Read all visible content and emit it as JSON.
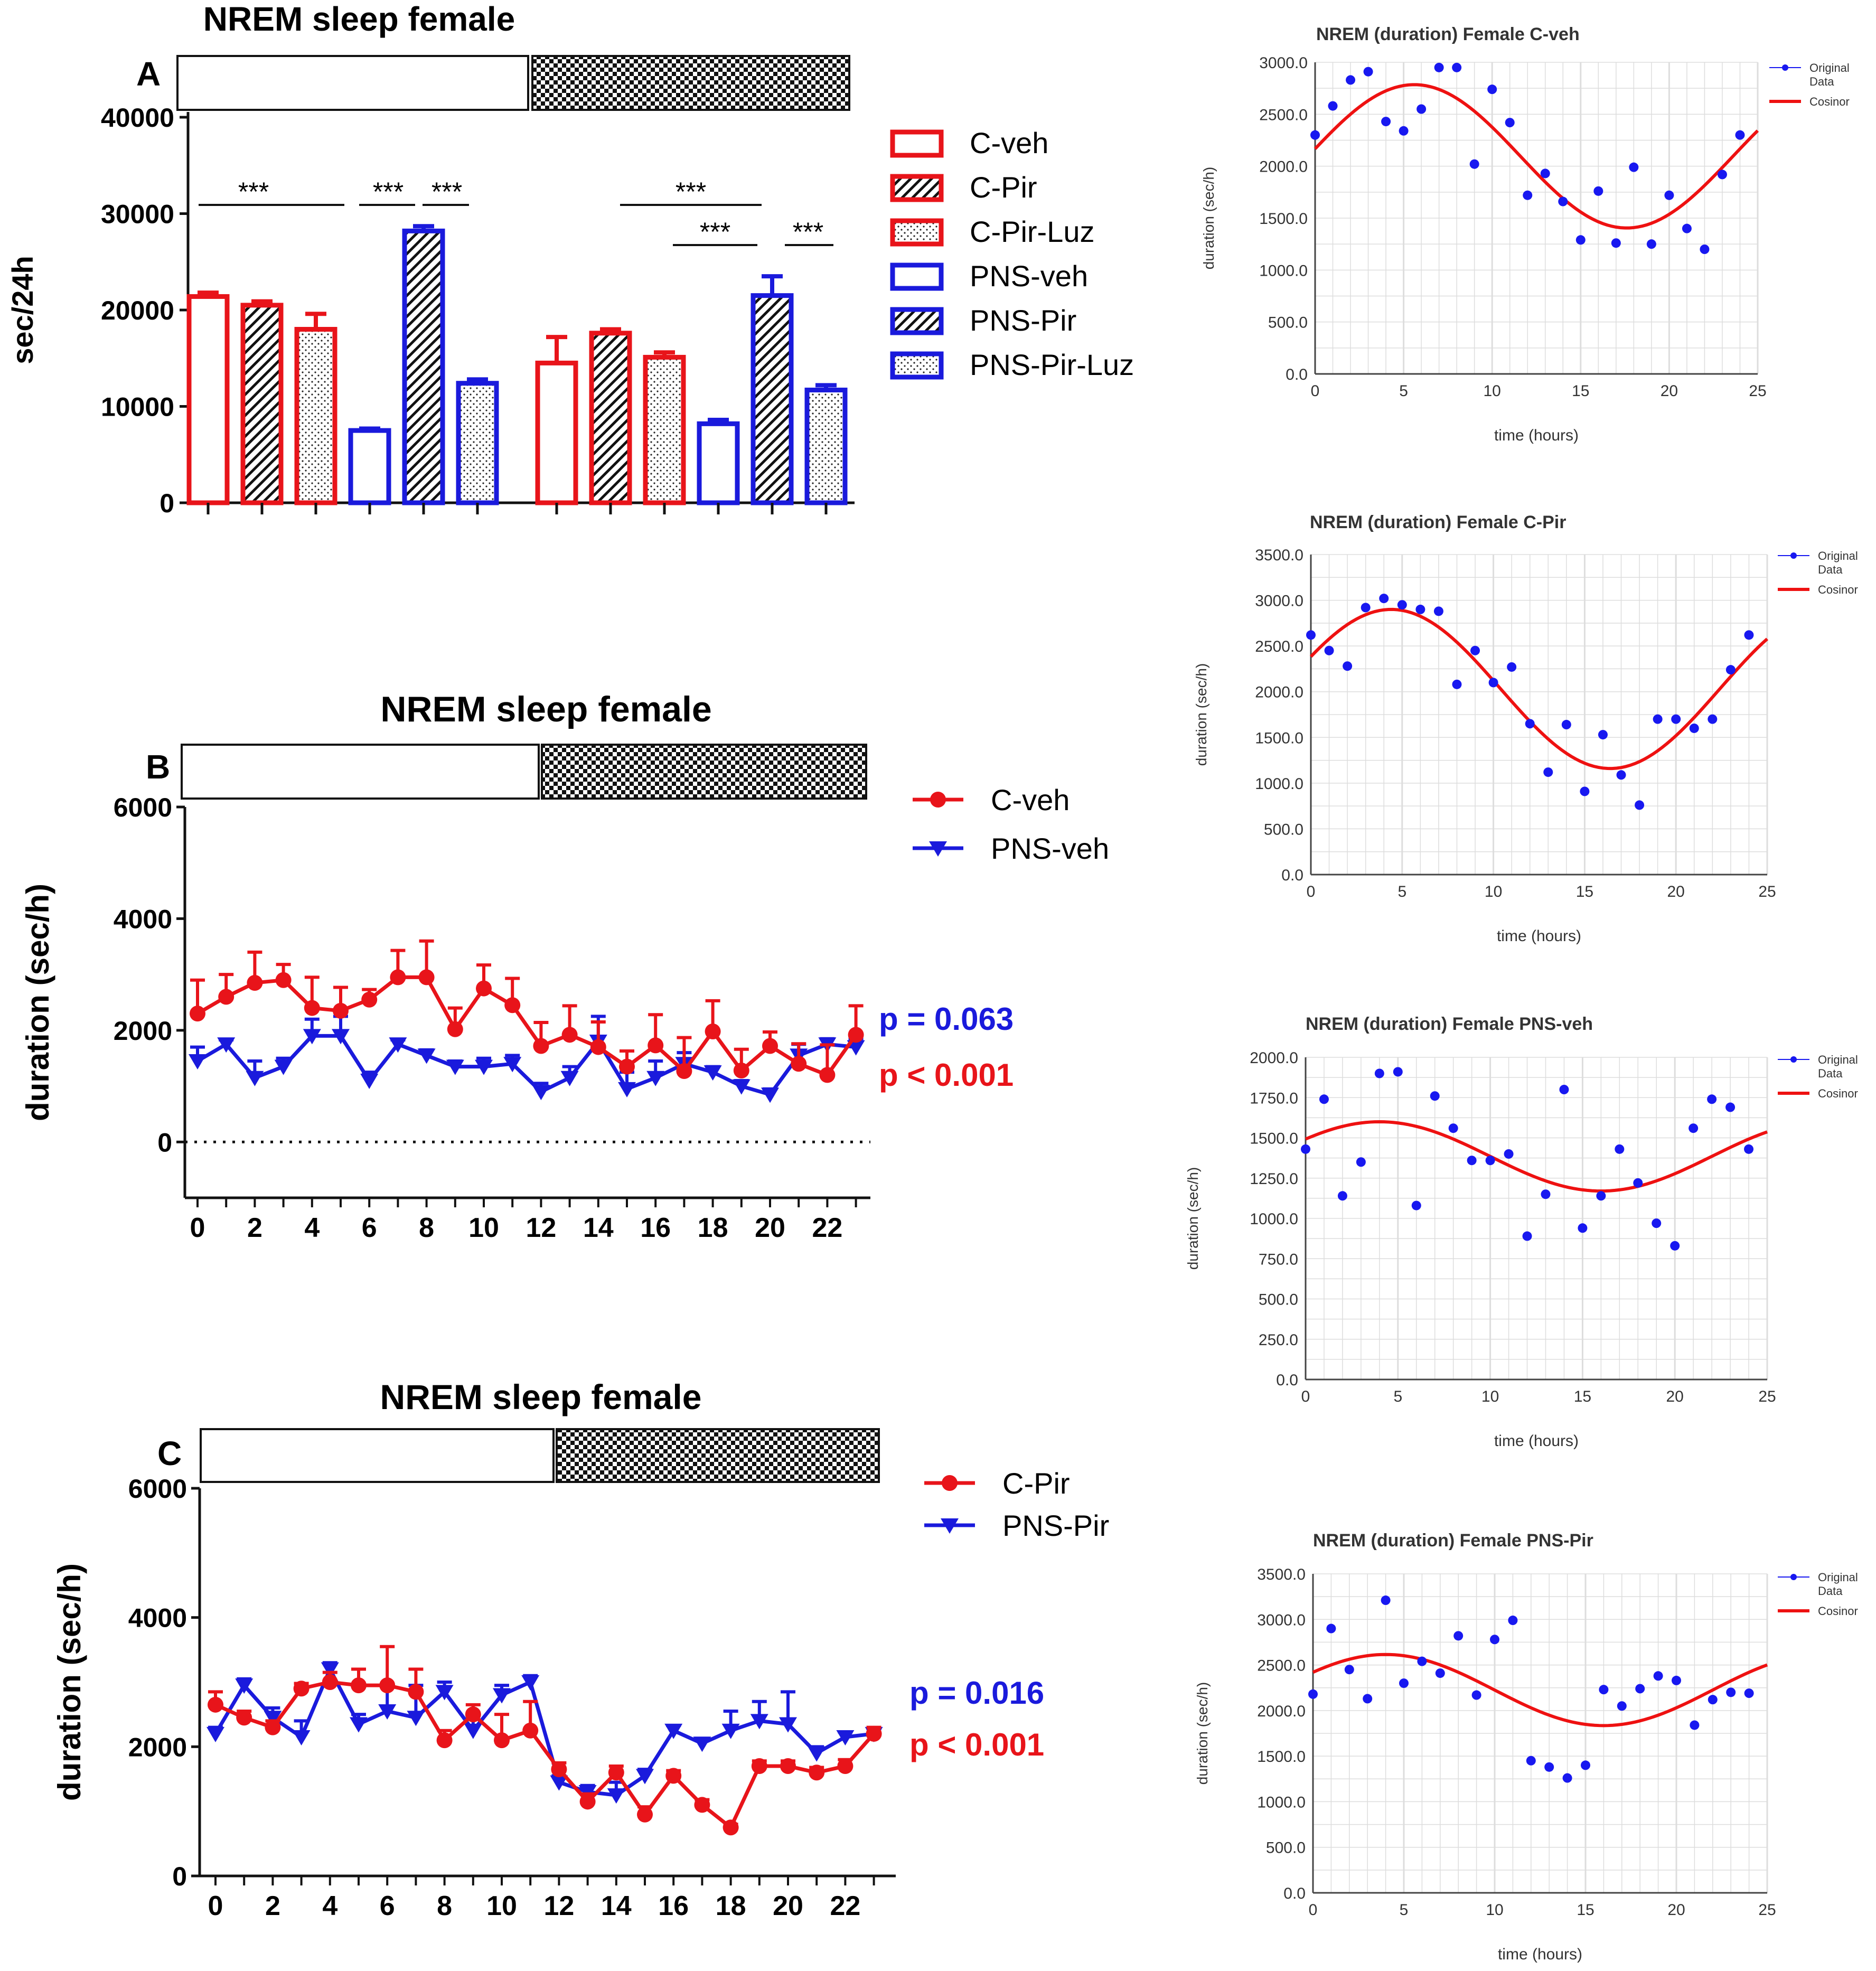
{
  "colors": {
    "red": "#e8141a",
    "blue": "#1a1adc",
    "cos_red": "#ee1111",
    "dot_blue": "#1818f0",
    "grid": "#dddddd"
  },
  "panel_a": {
    "title": "NREM sleep female",
    "letter": "A",
    "legend": [
      "C-veh",
      "C-Pir",
      "C-Pir-Luz",
      "PNS-veh",
      "PNS-Pir",
      "PNS-Pir-Luz"
    ],
    "sig_marker": "***"
  },
  "panel_b": {
    "title": "NREM sleep female",
    "letter": "B",
    "p_blue": "p = 0.063",
    "p_red": "p < 0.001"
  },
  "panel_c": {
    "title": "NREM sleep female",
    "letter": "C",
    "p_blue": "p = 0.016",
    "p_red": "p < 0.001"
  },
  "cosinor_legend": {
    "line1": "Original",
    "line2": "Data",
    "line3": "Cosinor"
  },
  "chart_data": [
    {
      "id": "A",
      "type": "bar",
      "title": "NREM sleep female",
      "ylabel": "sec/24h",
      "ylim": [
        0,
        40000
      ],
      "yticks": [
        0,
        10000,
        20000,
        30000,
        40000
      ],
      "groups": [
        "light phase",
        "dark phase"
      ],
      "series": [
        {
          "name": "C-veh",
          "values": [
            21400,
            14500
          ],
          "errors": [
            400,
            2700
          ],
          "color": "red",
          "pattern": "open"
        },
        {
          "name": "C-Pir",
          "values": [
            20500,
            17600
          ],
          "errors": [
            400,
            400
          ],
          "color": "red",
          "pattern": "hatch"
        },
        {
          "name": "C-Pir-Luz",
          "values": [
            18000,
            15100
          ],
          "errors": [
            1600,
            500
          ],
          "color": "red",
          "pattern": "dots"
        },
        {
          "name": "PNS-veh",
          "values": [
            7500,
            8200
          ],
          "errors": [
            200,
            400
          ],
          "color": "blue",
          "pattern": "open"
        },
        {
          "name": "PNS-Pir",
          "values": [
            28200,
            21500
          ],
          "errors": [
            500,
            2000
          ],
          "color": "blue",
          "pattern": "hatch"
        },
        {
          "name": "PNS-Pir-Luz",
          "values": [
            12400,
            11700
          ],
          "errors": [
            400,
            500
          ],
          "color": "blue",
          "pattern": "dots"
        }
      ]
    },
    {
      "id": "B",
      "type": "line",
      "title": "NREM sleep female",
      "ylabel": "duration (sec/h)",
      "ylim": [
        -1000,
        6000
      ],
      "yticks": [
        0,
        2000,
        4000,
        6000
      ],
      "x": [
        0,
        1,
        2,
        3,
        4,
        5,
        6,
        7,
        8,
        9,
        10,
        11,
        12,
        13,
        14,
        15,
        16,
        17,
        18,
        19,
        20,
        21,
        22,
        23
      ],
      "xticks": [
        0,
        2,
        4,
        6,
        8,
        10,
        12,
        14,
        16,
        18,
        20,
        22
      ],
      "series": [
        {
          "name": "C-veh",
          "color": "red",
          "marker": "circle",
          "values": [
            2300,
            2600,
            2850,
            2900,
            2400,
            2350,
            2550,
            2950,
            2950,
            2020,
            2750,
            2450,
            1720,
            1920,
            1700,
            1350,
            1730,
            1270,
            1980,
            1280,
            1720,
            1400,
            1200,
            1920
          ],
          "errors": [
            600,
            400,
            550,
            280,
            550,
            420,
            180,
            480,
            650,
            380,
            420,
            480,
            420,
            520,
            450,
            280,
            550,
            600,
            550,
            380,
            250,
            360,
            540,
            520
          ]
        },
        {
          "name": "PNS-veh",
          "color": "blue",
          "marker": "triangle-down",
          "values": [
            1450,
            1750,
            1150,
            1350,
            1900,
            1900,
            1100,
            1750,
            1550,
            1350,
            1350,
            1400,
            900,
            1150,
            1800,
            950,
            1150,
            1400,
            1250,
            1000,
            850,
            1550,
            1750,
            1700
          ],
          "errors": [
            250,
            80,
            300,
            150,
            300,
            350,
            150,
            80,
            100,
            100,
            150,
            150,
            150,
            200,
            450,
            300,
            300,
            200,
            100,
            100,
            100,
            200,
            100,
            150
          ]
        }
      ],
      "p_values": {
        "PNS-veh": "p = 0.063",
        "C-veh": "p < 0.001"
      }
    },
    {
      "id": "C",
      "type": "line",
      "title": "NREM sleep female",
      "ylabel": "duration (sec/h)",
      "ylim": [
        0,
        6000
      ],
      "yticks": [
        0,
        2000,
        4000,
        6000
      ],
      "x": [
        0,
        1,
        2,
        3,
        4,
        5,
        6,
        7,
        8,
        9,
        10,
        11,
        12,
        13,
        14,
        15,
        16,
        17,
        18,
        19,
        20,
        21,
        22,
        23
      ],
      "xticks": [
        0,
        2,
        4,
        6,
        8,
        10,
        12,
        14,
        16,
        18,
        20,
        22
      ],
      "series": [
        {
          "name": "C-Pir",
          "color": "red",
          "marker": "circle",
          "values": [
            2650,
            2450,
            2300,
            2900,
            3000,
            2950,
            2950,
            2850,
            2100,
            2500,
            2100,
            2250,
            1650,
            1150,
            1600,
            950,
            1550,
            1100,
            750,
            1700,
            1700,
            1600,
            1700,
            2200
          ],
          "errors": [
            200,
            100,
            100,
            80,
            150,
            250,
            600,
            350,
            150,
            150,
            400,
            450,
            100,
            120,
            100,
            120,
            80,
            80,
            50,
            80,
            80,
            80,
            100,
            100
          ]
        },
        {
          "name": "PNS-Pir",
          "color": "blue",
          "marker": "triangle-down",
          "values": [
            2200,
            2950,
            2450,
            2150,
            3200,
            2350,
            2550,
            2450,
            2850,
            2250,
            2800,
            3000,
            1450,
            1300,
            1250,
            1550,
            2250,
            2050,
            2250,
            2400,
            2350,
            1900,
            2150,
            2200
          ],
          "errors": [
            100,
            100,
            150,
            250,
            100,
            150,
            400,
            500,
            150,
            250,
            150,
            100,
            100,
            100,
            200,
            100,
            80,
            80,
            300,
            300,
            500,
            100,
            80,
            80
          ]
        }
      ],
      "p_values": {
        "PNS-Pir": "p = 0.016",
        "C-Pir": "p < 0.001"
      }
    },
    {
      "id": "cos1",
      "type": "scatter",
      "title": "NREM (duration) Female C-veh",
      "xlabel": "time (hours)",
      "ylabel": "duration (sec/h)",
      "xlim": [
        0,
        25
      ],
      "ylim": [
        0,
        3000
      ],
      "xticks": [
        0,
        5,
        10,
        15,
        20,
        25
      ],
      "yticks": [
        "0.0",
        "500.0",
        "1000.0",
        "1500.0",
        "2000.0",
        "2500.0",
        "3000.0"
      ],
      "x": [
        0,
        1,
        2,
        3,
        4,
        5,
        6,
        7,
        8,
        9,
        10,
        11,
        12,
        13,
        14,
        15,
        16,
        17,
        18,
        19,
        20,
        21,
        22,
        23,
        24
      ],
      "y": [
        2300,
        2580,
        2830,
        2910,
        2430,
        2340,
        2550,
        2950,
        2950,
        2020,
        2740,
        2420,
        1720,
        1930,
        1660,
        1290,
        1760,
        1260,
        1990,
        1250,
        1720,
        1400,
        1200,
        1920,
        2300
      ],
      "cosinor": {
        "mesor": 2095,
        "amplitude": 690,
        "acrophase_h": 5.6,
        "period_h": 24
      }
    },
    {
      "id": "cos2",
      "type": "scatter",
      "title": "NREM (duration) Female C-Pir",
      "xlabel": "time (hours)",
      "ylabel": "duration (sec/h)",
      "xlim": [
        0,
        25
      ],
      "ylim": [
        0,
        3500
      ],
      "xticks": [
        0,
        5,
        10,
        15,
        20,
        25
      ],
      "yticks": [
        "0.0",
        "500.0",
        "1000.0",
        "1500.0",
        "2000.0",
        "2500.0",
        "3000.0",
        "3500.0"
      ],
      "x": [
        0,
        1,
        2,
        3,
        4,
        5,
        6,
        7,
        8,
        9,
        10,
        11,
        12,
        13,
        14,
        15,
        16,
        17,
        18,
        19,
        20,
        21,
        22,
        23,
        24
      ],
      "y": [
        2620,
        2450,
        2280,
        2920,
        3020,
        2950,
        2900,
        2880,
        2080,
        2450,
        2100,
        2270,
        1650,
        1120,
        1640,
        910,
        1530,
        1090,
        760,
        1700,
        1700,
        1600,
        1700,
        2240,
        2620
      ],
      "cosinor": {
        "mesor": 2030,
        "amplitude": 870,
        "acrophase_h": 4.4,
        "period_h": 24
      }
    },
    {
      "id": "cos3",
      "type": "scatter",
      "title": "NREM (duration) Female PNS-veh",
      "xlabel": "time (hours)",
      "ylabel": "duration (sec/h)",
      "xlim": [
        0,
        25
      ],
      "ylim": [
        0,
        2000
      ],
      "xticks": [
        0,
        5,
        10,
        15,
        20,
        25
      ],
      "yticks": [
        "0.0",
        "250.0",
        "500.0",
        "750.0",
        "1000.0",
        "1250.0",
        "1500.0",
        "1750.0",
        "2000.0"
      ],
      "x": [
        0,
        1,
        2,
        3,
        4,
        5,
        6,
        7,
        8,
        9,
        10,
        11,
        12,
        13,
        14,
        15,
        16,
        17,
        18,
        19,
        20,
        21,
        22,
        23,
        24
      ],
      "y": [
        1430,
        1740,
        1140,
        1350,
        1900,
        1910,
        1080,
        1760,
        1560,
        1360,
        1360,
        1400,
        890,
        1150,
        1800,
        940,
        1140,
        1430,
        1220,
        970,
        830,
        1560,
        1740,
        1690,
        1430
      ],
      "cosinor": {
        "mesor": 1385,
        "amplitude": 215,
        "acrophase_h": 4,
        "period_h": 24
      }
    },
    {
      "id": "cos4",
      "type": "scatter",
      "title": "NREM (duration) Female PNS-Pir",
      "xlabel": "time (hours)",
      "ylabel": "duration (sec/h)",
      "xlim": [
        0,
        25
      ],
      "ylim": [
        0,
        3500
      ],
      "xticks": [
        0,
        5,
        10,
        15,
        20,
        25
      ],
      "yticks": [
        "0.0",
        "500.0",
        "1000.0",
        "1500.0",
        "2000.0",
        "2500.0",
        "3000.0",
        "3500.0"
      ],
      "x": [
        0,
        1,
        2,
        3,
        4,
        5,
        6,
        7,
        8,
        9,
        10,
        11,
        12,
        13,
        14,
        15,
        16,
        17,
        18,
        19,
        20,
        21,
        22,
        23,
        24
      ],
      "y": [
        2180,
        2900,
        2450,
        2130,
        3210,
        2300,
        2540,
        2410,
        2820,
        2170,
        2780,
        2990,
        1450,
        1380,
        1260,
        1400,
        2230,
        2050,
        2240,
        2380,
        2330,
        1840,
        2120,
        2200,
        2190
      ],
      "cosinor": {
        "mesor": 2225,
        "amplitude": 390,
        "acrophase_h": 4,
        "period_h": 24
      }
    }
  ]
}
